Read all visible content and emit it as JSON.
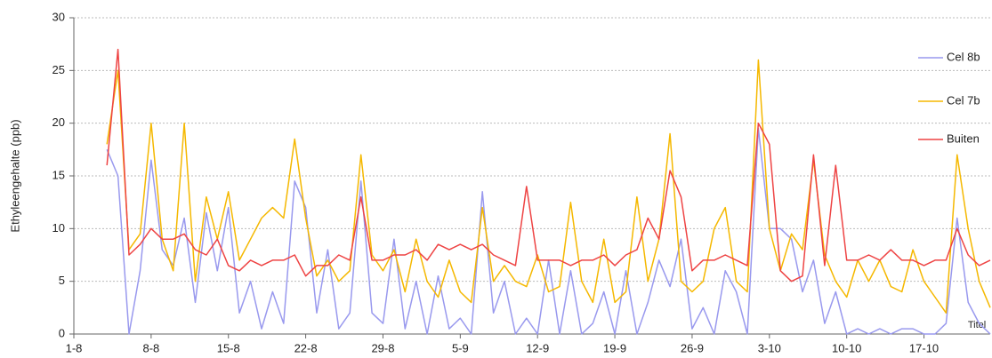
{
  "chart_data": {
    "type": "line",
    "y_label": "Ethyleengehalte (ppb)",
    "annotation": "Titel",
    "x": [
      3,
      4,
      5,
      6,
      7,
      8,
      9,
      10,
      11,
      12,
      13,
      14,
      15,
      16,
      17,
      18,
      19,
      20,
      21,
      22,
      23,
      24,
      25,
      26,
      27,
      28,
      29,
      30,
      31,
      32,
      33,
      34,
      35,
      36,
      37,
      38,
      39,
      40,
      41,
      42,
      43,
      44,
      45,
      46,
      47,
      48,
      49,
      50,
      51,
      52,
      53,
      54,
      55,
      56,
      57,
      58,
      59,
      60,
      61,
      62,
      63,
      64,
      65,
      66,
      67,
      68,
      69,
      70,
      71,
      72,
      73,
      74,
      75,
      76,
      77,
      78,
      79,
      80,
      81,
      82,
      83
    ],
    "xlim": [
      0,
      83
    ],
    "xticks": [
      {
        "value": 0,
        "label": "1-8"
      },
      {
        "value": 7,
        "label": "8-8"
      },
      {
        "value": 14,
        "label": "15-8"
      },
      {
        "value": 21,
        "label": "22-8"
      },
      {
        "value": 28,
        "label": "29-8"
      },
      {
        "value": 35,
        "label": "5-9"
      },
      {
        "value": 42,
        "label": "12-9"
      },
      {
        "value": 49,
        "label": "19-9"
      },
      {
        "value": 56,
        "label": "26-9"
      },
      {
        "value": 63,
        "label": "3-10"
      },
      {
        "value": 70,
        "label": "10-10"
      },
      {
        "value": 77,
        "label": "17-10"
      }
    ],
    "ylim": [
      0,
      30
    ],
    "yticks": [
      0,
      5,
      10,
      15,
      20,
      25,
      30
    ],
    "grid": true,
    "legend": "right",
    "series": [
      {
        "name": "Cel 8b",
        "color": "#9999ee",
        "values": [
          17.5,
          15,
          0,
          6,
          16.5,
          8,
          6.5,
          11,
          3,
          11.5,
          6,
          12,
          2,
          5,
          0.5,
          4,
          1,
          14.5,
          12,
          2,
          8,
          0.5,
          2,
          14.5,
          2,
          1,
          9,
          0.5,
          5,
          0,
          5.5,
          0.5,
          1.5,
          0,
          13.5,
          2,
          5,
          0,
          1.5,
          0,
          7,
          0,
          6,
          0,
          1,
          4,
          0,
          6,
          0,
          3,
          7,
          4.5,
          9,
          0.5,
          2.5,
          0,
          6,
          4,
          0,
          19.5,
          10,
          10,
          9,
          4,
          7,
          1,
          4,
          0,
          0.5,
          0,
          0.5,
          0,
          0.5,
          0.5,
          0,
          0,
          1,
          11,
          3,
          1,
          0
        ]
      },
      {
        "name": "Cel 7b",
        "color": "#f5b800",
        "values": [
          18,
          25,
          8,
          9.5,
          20,
          9,
          6,
          20,
          5,
          13,
          9,
          13.5,
          7,
          9,
          11,
          12,
          11,
          18.5,
          11,
          5.5,
          7,
          5,
          6,
          17,
          7.5,
          6,
          8,
          4,
          9,
          5,
          3.5,
          7,
          4,
          3,
          12,
          5,
          6.5,
          5,
          4.5,
          7.5,
          4,
          4.5,
          12.5,
          5,
          3,
          9,
          3,
          4,
          13,
          5,
          9,
          19,
          5,
          4,
          5,
          10,
          12,
          5,
          4,
          26,
          10,
          6,
          9.5,
          8,
          16.5,
          7.5,
          5,
          3.5,
          7,
          5,
          7,
          4.5,
          4,
          8,
          5,
          3.5,
          2,
          17,
          10,
          5,
          2.5
        ]
      },
      {
        "name": "Buiten",
        "color": "#ee4444",
        "values": [
          16,
          27,
          7.5,
          8.5,
          10,
          9,
          9,
          9.5,
          8,
          7.5,
          9,
          6.5,
          6,
          7,
          6.5,
          7,
          7,
          7.5,
          5.5,
          6.5,
          6.5,
          7.5,
          7,
          13,
          7,
          7,
          7.5,
          7.5,
          8,
          7,
          8.5,
          8,
          8.5,
          8,
          8.5,
          7.5,
          7,
          6.5,
          14,
          7,
          7,
          7,
          6.5,
          7,
          7,
          7.5,
          6.5,
          7.5,
          8,
          11,
          9,
          15.5,
          13,
          6,
          7,
          7,
          7.5,
          7,
          6.5,
          20,
          18,
          6,
          5,
          5.5,
          17,
          6.5,
          16,
          7,
          7,
          7.5,
          7,
          8,
          7,
          7,
          6.5,
          7,
          7,
          10,
          7.5,
          6.5,
          7
        ]
      }
    ]
  }
}
